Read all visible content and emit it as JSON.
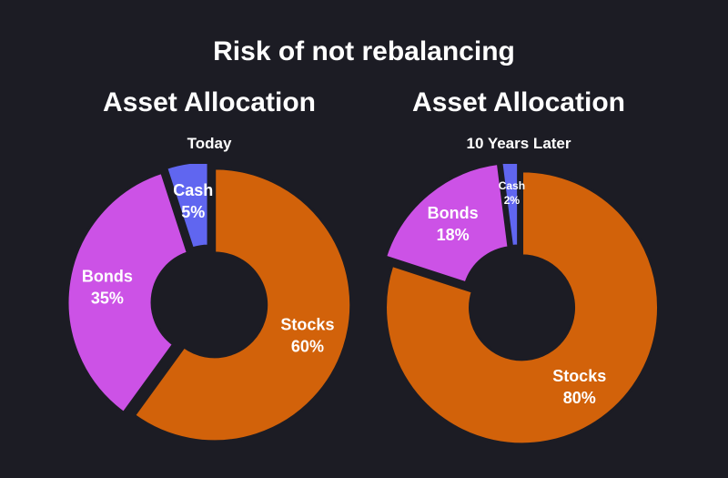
{
  "title": "Risk of not rebalancing",
  "colors": {
    "Stocks": "#d2620a",
    "Bonds": "#cc52e6",
    "Cash": "#6066f0",
    "background": "#1c1c24"
  },
  "chart_data": [
    {
      "type": "pie",
      "title": "Asset Allocation",
      "subtitle": "Today",
      "slices": [
        {
          "label": "Stocks",
          "value": 60,
          "value_label": "60%"
        },
        {
          "label": "Bonds",
          "value": 35,
          "value_label": "35%"
        },
        {
          "label": "Cash",
          "value": 5,
          "value_label": "5%"
        }
      ]
    },
    {
      "type": "pie",
      "title": "Asset Allocation",
      "subtitle": "10 Years Later",
      "slices": [
        {
          "label": "Stocks",
          "value": 80,
          "value_label": "80%"
        },
        {
          "label": "Bonds",
          "value": 18,
          "value_label": "18%"
        },
        {
          "label": "Cash",
          "value": 2,
          "value_label": "2%"
        }
      ]
    }
  ]
}
